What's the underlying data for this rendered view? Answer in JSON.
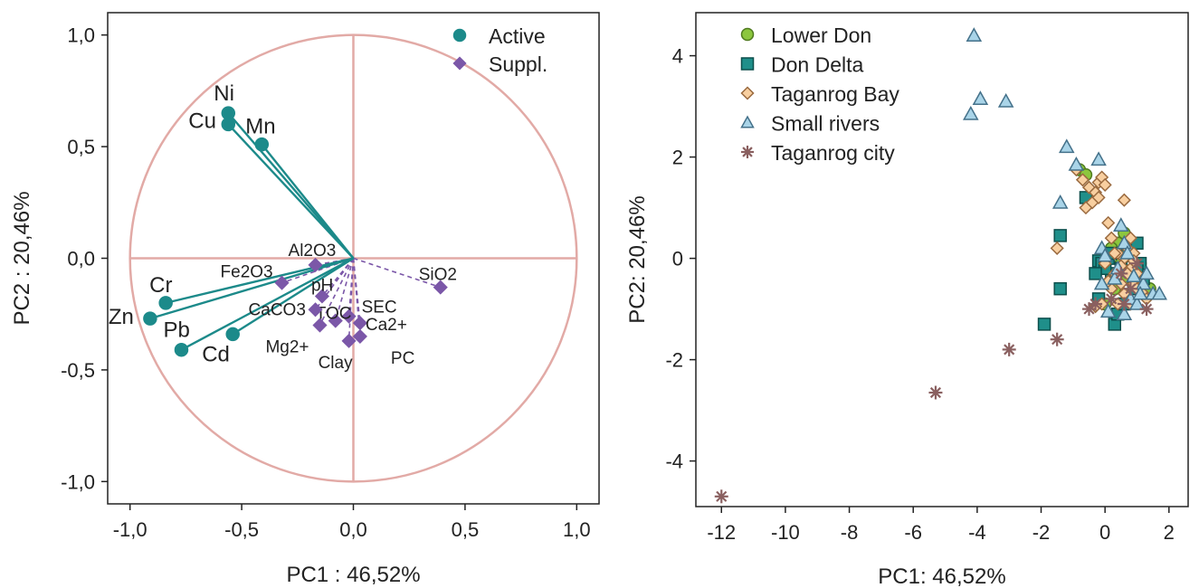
{
  "chart_data": [
    {
      "type": "scatter",
      "subtype": "pca-correlation-circle",
      "xlabel": "PC1 : 46,52%",
      "ylabel": "PC2 : 20,46%",
      "xlim": [
        -1.1,
        1.1
      ],
      "ylim": [
        -1.1,
        1.1
      ],
      "xticks": [
        -1.0,
        -0.5,
        0.0,
        0.5,
        1.0
      ],
      "xtick_labels": [
        "-1,0",
        "-0,5",
        "0,0",
        "0,5",
        "1,0"
      ],
      "yticks": [
        -1.0,
        -0.5,
        0.0,
        0.5,
        1.0
      ],
      "ytick_labels": [
        "-1,0",
        "-0,5",
        "0,0",
        "0,5",
        "1,0"
      ],
      "grid": false,
      "unit_circle": true,
      "legend_position": "top-right",
      "legend": [
        {
          "name": "Active",
          "marker": "circle",
          "color": "#1c8a8a"
        },
        {
          "name": "Suppl.",
          "marker": "diamond",
          "color": "#7b57a8"
        }
      ],
      "series": [
        {
          "name": "Active",
          "marker": "circle",
          "color": "#1c8a8a",
          "points": [
            {
              "label": "Ni",
              "x": -0.56,
              "y": 0.65
            },
            {
              "label": "Cu",
              "x": -0.56,
              "y": 0.6
            },
            {
              "label": "Mn",
              "x": -0.41,
              "y": 0.51
            },
            {
              "label": "Cr",
              "x": -0.84,
              "y": -0.2
            },
            {
              "label": "Zn",
              "x": -0.91,
              "y": -0.27
            },
            {
              "label": "Pb",
              "x": -0.77,
              "y": -0.41
            },
            {
              "label": "Cd",
              "x": -0.54,
              "y": -0.34
            }
          ]
        },
        {
          "name": "Suppl.",
          "marker": "diamond",
          "color": "#7b57a8",
          "points": [
            {
              "label": "Al2O3",
              "x": -0.17,
              "y": -0.03
            },
            {
              "label": "Fe2O3",
              "x": -0.32,
              "y": -0.11
            },
            {
              "label": "SiO2",
              "x": 0.39,
              "y": -0.13
            },
            {
              "label": "pH",
              "x": -0.14,
              "y": -0.17
            },
            {
              "label": "SEC",
              "x": -0.02,
              "y": -0.26
            },
            {
              "label": "TOC",
              "x": -0.08,
              "y": -0.28
            },
            {
              "label": "Ca2+",
              "x": 0.03,
              "y": -0.29
            },
            {
              "label": "CaCO3",
              "x": -0.17,
              "y": -0.23
            },
            {
              "label": "Mg2+",
              "x": -0.15,
              "y": -0.3
            },
            {
              "label": "Clay",
              "x": -0.02,
              "y": -0.37
            },
            {
              "label": "PC",
              "x": 0.03,
              "y": -0.35
            }
          ]
        }
      ]
    },
    {
      "type": "scatter",
      "xlabel": "PC1: 46,52%",
      "ylabel": "PC2: 20,46%",
      "xlim": [
        -12.8,
        2.6
      ],
      "ylim": [
        -4.9,
        4.85
      ],
      "xticks": [
        -12,
        -10,
        -8,
        -6,
        -4,
        -2,
        0,
        2
      ],
      "xtick_labels": [
        "-12",
        "-10",
        "-8",
        "-6",
        "-4",
        "-2",
        "0",
        "2"
      ],
      "yticks": [
        -4,
        -2,
        0,
        2,
        4
      ],
      "ytick_labels": [
        "-4",
        "-2",
        "0",
        "2",
        "4"
      ],
      "grid": false,
      "legend_position": "top-left",
      "series": [
        {
          "name": "Lower Don",
          "marker": "circle",
          "color": "#8cc63e",
          "stroke": "#4f7a1f",
          "points": [
            [
              -0.8,
              1.75
            ],
            [
              -0.6,
              1.65
            ],
            [
              0.4,
              0.3
            ],
            [
              0.6,
              0.5
            ],
            [
              0.8,
              0.1
            ],
            [
              1.0,
              -0.2
            ],
            [
              1.2,
              -0.5
            ],
            [
              1.3,
              -0.7
            ],
            [
              1.4,
              -0.6
            ],
            [
              0.9,
              -0.3
            ],
            [
              0.5,
              -0.1
            ],
            [
              0.2,
              0.2
            ],
            [
              0.7,
              -0.4
            ],
            [
              1.1,
              -0.1
            ],
            [
              0.3,
              -0.6
            ],
            [
              0.0,
              -0.9
            ]
          ]
        },
        {
          "name": "Don Delta",
          "marker": "square",
          "color": "#1f8f8a",
          "stroke": "#0d4f4c",
          "points": [
            [
              -1.9,
              -1.3
            ],
            [
              -1.4,
              0.45
            ],
            [
              -1.4,
              -0.6
            ],
            [
              -0.6,
              1.2
            ],
            [
              -0.2,
              -0.05
            ],
            [
              -0.1,
              -0.1
            ],
            [
              0.2,
              -0.3
            ],
            [
              0.3,
              -1.3
            ],
            [
              -0.2,
              -0.8
            ],
            [
              0.0,
              -0.2
            ],
            [
              0.1,
              0.0
            ],
            [
              0.5,
              -0.2
            ],
            [
              0.8,
              0.2
            ],
            [
              1.0,
              0.3
            ],
            [
              1.1,
              -0.1
            ],
            [
              0.9,
              -0.6
            ],
            [
              1.2,
              -0.4
            ],
            [
              0.4,
              -1.1
            ],
            [
              0.6,
              -0.9
            ],
            [
              0.2,
              0.1
            ],
            [
              -0.3,
              -0.3
            ],
            [
              1.0,
              -0.2
            ],
            [
              0.7,
              0.05
            ]
          ]
        },
        {
          "name": "Taganrog Bay",
          "marker": "diamond",
          "color": "#f8cfa0",
          "stroke": "#9a6a3f",
          "points": [
            [
              -0.9,
              1.75
            ],
            [
              -0.7,
              1.55
            ],
            [
              -0.5,
              1.4
            ],
            [
              -0.3,
              1.3
            ],
            [
              -0.2,
              1.5
            ],
            [
              -0.1,
              1.6
            ],
            [
              0.0,
              1.45
            ],
            [
              -0.4,
              1.1
            ],
            [
              -0.6,
              1.0
            ],
            [
              -1.5,
              0.2
            ],
            [
              0.1,
              0.7
            ],
            [
              0.2,
              0.4
            ],
            [
              0.4,
              0.1
            ],
            [
              0.6,
              0.0
            ],
            [
              0.7,
              0.2
            ],
            [
              0.8,
              -0.2
            ],
            [
              0.9,
              0.1
            ],
            [
              1.0,
              -0.3
            ],
            [
              1.1,
              -0.5
            ],
            [
              1.2,
              -0.7
            ],
            [
              0.5,
              -0.5
            ],
            [
              0.3,
              -0.3
            ],
            [
              0.6,
              -0.7
            ],
            [
              0.8,
              -0.9
            ],
            [
              0.4,
              -0.9
            ],
            [
              0.2,
              -0.6
            ],
            [
              -0.1,
              -0.9
            ],
            [
              -0.3,
              -0.95
            ],
            [
              0.0,
              -0.1
            ],
            [
              0.5,
              -0.15
            ],
            [
              0.7,
              -0.3
            ],
            [
              0.9,
              -0.5
            ],
            [
              0.3,
              0.1
            ],
            [
              0.6,
              1.15
            ],
            [
              1.3,
              -0.8
            ],
            [
              0.8,
              0.4
            ],
            [
              0.9,
              -0.05
            ],
            [
              -0.2,
              1.2
            ],
            [
              1.0,
              -0.6
            ],
            [
              0.1,
              -0.45
            ]
          ]
        },
        {
          "name": "Small rivers",
          "marker": "triangle",
          "color": "#a9d4e8",
          "stroke": "#44718a",
          "points": [
            [
              -4.1,
              4.4
            ],
            [
              -3.9,
              3.15
            ],
            [
              -4.2,
              2.85
            ],
            [
              -3.1,
              3.1
            ],
            [
              -1.4,
              1.1
            ],
            [
              -0.9,
              1.85
            ],
            [
              -1.2,
              2.2
            ],
            [
              -0.2,
              1.95
            ],
            [
              0.5,
              0.65
            ],
            [
              -0.1,
              0.2
            ],
            [
              0.0,
              0.05
            ],
            [
              0.6,
              0.3
            ],
            [
              0.7,
              0.1
            ],
            [
              0.9,
              -0.35
            ],
            [
              1.2,
              -0.5
            ],
            [
              1.5,
              -0.7
            ],
            [
              1.7,
              -0.7
            ],
            [
              0.8,
              -0.8
            ],
            [
              0.3,
              -0.4
            ],
            [
              1.0,
              -0.9
            ],
            [
              0.1,
              -1.05
            ],
            [
              0.6,
              -1.1
            ],
            [
              -0.1,
              -0.5
            ],
            [
              1.3,
              -0.3
            ],
            [
              0.4,
              -0.2
            ],
            [
              1.1,
              -0.7
            ]
          ]
        },
        {
          "name": "Taganrog city",
          "marker": "asterisk",
          "color": "#8a6060",
          "stroke": "#8a6060",
          "points": [
            [
              -12.0,
              -4.7
            ],
            [
              -5.3,
              -2.65
            ],
            [
              -3.0,
              -1.8
            ],
            [
              -1.5,
              -1.6
            ],
            [
              -0.5,
              -1.0
            ],
            [
              -0.3,
              -0.9
            ],
            [
              0.5,
              -0.3
            ],
            [
              0.8,
              -0.6
            ],
            [
              1.3,
              -1.0
            ],
            [
              0.2,
              -0.8
            ],
            [
              1.0,
              -0.1
            ],
            [
              0.6,
              -0.9
            ]
          ]
        }
      ]
    }
  ]
}
